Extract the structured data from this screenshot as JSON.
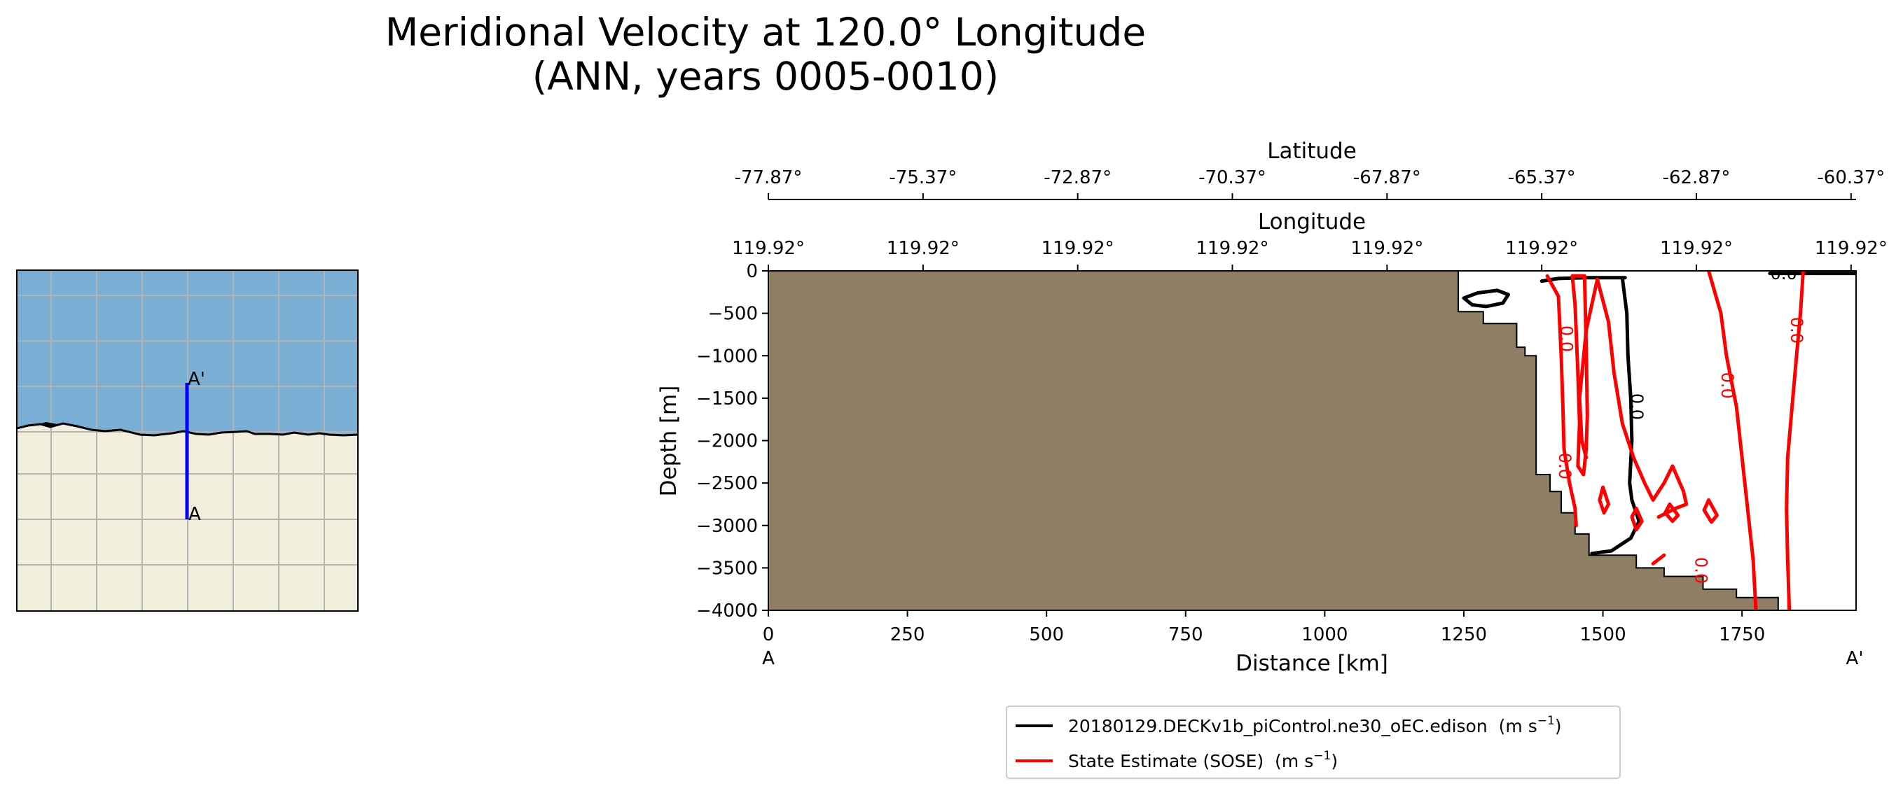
{
  "title": {
    "line1": "Meridional Velocity at 120.0° Longitude",
    "line2": "(ANN, years 0005-0010)"
  },
  "inset": {
    "label_a": "A",
    "label_a_prime": "A'",
    "colors": {
      "ocean": "#7aaed4",
      "land": "#f1eedc",
      "grid": "#b3b3b3",
      "transect": "#0000ff",
      "coast": "#000000"
    }
  },
  "chart_data": {
    "type": "contour",
    "xlabel": "Distance [km]",
    "ylabel": "Depth [m]",
    "xlim": [
      0,
      1955
    ],
    "ylim": [
      -4000,
      0
    ],
    "x_ticks": [
      0,
      250,
      500,
      750,
      1000,
      1250,
      1500,
      1750
    ],
    "y_ticks": [
      0,
      -500,
      -1000,
      -1500,
      -2000,
      -2500,
      -3000,
      -3500,
      -4000
    ],
    "x_tick_labels": [
      "0",
      "250",
      "500",
      "750",
      "1000",
      "1250",
      "1500",
      "1750"
    ],
    "y_tick_labels": [
      "0",
      "−500",
      "−1000",
      "−1500",
      "−2000",
      "−2500",
      "−3000",
      "−3500",
      "−4000"
    ],
    "x_endpoint_labels": [
      "A",
      "A'"
    ],
    "latitude_axis": {
      "label": "Latitude",
      "tick_km": [
        0,
        278,
        556,
        834,
        1112,
        1390,
        1668,
        1946
      ],
      "tick_labels": [
        "-77.87°",
        "-75.37°",
        "-72.87°",
        "-70.37°",
        "-67.87°",
        "-65.37°",
        "-62.87°",
        "-60.37°"
      ]
    },
    "longitude_axis": {
      "label": "Longitude",
      "tick_km": [
        0,
        278,
        556,
        834,
        1112,
        1390,
        1668,
        1946
      ],
      "tick_labels": [
        "119.92°",
        "119.92°",
        "119.92°",
        "119.92°",
        "119.92°",
        "119.92°",
        "119.92°",
        "119.92°"
      ]
    },
    "bathymetry": {
      "color": "#8e7f64",
      "points": [
        [
          0,
          0
        ],
        [
          1240,
          0
        ],
        [
          1240,
          -480
        ],
        [
          1285,
          -480
        ],
        [
          1285,
          -620
        ],
        [
          1345,
          -620
        ],
        [
          1345,
          -900
        ],
        [
          1360,
          -900
        ],
        [
          1360,
          -1000
        ],
        [
          1380,
          -1000
        ],
        [
          1380,
          -2400
        ],
        [
          1405,
          -2400
        ],
        [
          1405,
          -2600
        ],
        [
          1425,
          -2600
        ],
        [
          1425,
          -2850
        ],
        [
          1450,
          -2850
        ],
        [
          1450,
          -3100
        ],
        [
          1475,
          -3100
        ],
        [
          1475,
          -3350
        ],
        [
          1560,
          -3350
        ],
        [
          1560,
          -3500
        ],
        [
          1610,
          -3500
        ],
        [
          1610,
          -3600
        ],
        [
          1680,
          -3600
        ],
        [
          1680,
          -3750
        ],
        [
          1740,
          -3750
        ],
        [
          1740,
          -3850
        ],
        [
          1815,
          -3850
        ],
        [
          1815,
          -4000
        ],
        [
          0,
          -4000
        ]
      ]
    },
    "series": [
      {
        "name": "20180129.DECKv1b_piControl.ne30_oEC.edison",
        "units": "(m s",
        "units_exp": "−1",
        "units_close": ")",
        "color": "#000000",
        "contour_labels": [
          {
            "x": 1560,
            "y": -1600,
            "text": "0.0",
            "rotate": 90
          },
          {
            "x": 1825,
            "y": -40,
            "text": "0.0",
            "rotate": 0
          }
        ],
        "contours": [
          [
            [
              1250,
              -320
            ],
            [
              1275,
              -260
            ],
            [
              1310,
              -230
            ],
            [
              1330,
              -280
            ],
            [
              1320,
              -380
            ],
            [
              1290,
              -420
            ],
            [
              1265,
              -400
            ],
            [
              1250,
              -320
            ]
          ],
          [
            [
              1535,
              -90
            ],
            [
              1543,
              -500
            ],
            [
              1545,
              -1000
            ],
            [
              1550,
              -1500
            ],
            [
              1552,
              -2000
            ],
            [
              1548,
              -2500
            ],
            [
              1552,
              -2700
            ],
            [
              1565,
              -2950
            ],
            [
              1550,
              -3150
            ],
            [
              1515,
              -3300
            ],
            [
              1480,
              -3330
            ]
          ],
          [
            [
              1540,
              -80
            ],
            [
              1470,
              -80
            ],
            [
              1420,
              -90
            ],
            [
              1390,
              -120
            ]
          ],
          [
            [
              1800,
              -30
            ],
            [
              1955,
              -30
            ]
          ]
        ]
      },
      {
        "name": "State Estimate (SOSE)",
        "units": "(m s",
        "units_exp": "−1",
        "units_close": ")",
        "color": "#ff0000",
        "contour_labels": [
          {
            "x": 1433,
            "y": -800,
            "text": "0.0",
            "rotate": 90
          },
          {
            "x": 1430,
            "y": -2300,
            "text": "0.0",
            "rotate": 90
          },
          {
            "x": 1675,
            "y": -3530,
            "text": "0.0",
            "rotate": 90
          },
          {
            "x": 1722,
            "y": -1350,
            "text": "0.0",
            "rotate": 90
          },
          {
            "x": 1847,
            "y": -700,
            "text": "0.0",
            "rotate": 90
          }
        ],
        "contours": [
          [
            [
              1400,
              -60
            ],
            [
              1420,
              -300
            ],
            [
              1425,
              -1000
            ],
            [
              1428,
              -1600
            ],
            [
              1430,
              -2100
            ],
            [
              1440,
              -2500
            ],
            [
              1450,
              -2800
            ],
            [
              1452,
              -3000
            ]
          ],
          [
            [
              1445,
              -60
            ],
            [
              1450,
              -400
            ],
            [
              1455,
              -1200
            ],
            [
              1458,
              -1800
            ],
            [
              1455,
              -2300
            ],
            [
              1465,
              -2400
            ],
            [
              1470,
              -2100
            ],
            [
              1472,
              -1700
            ],
            [
              1470,
              -900
            ],
            [
              1467,
              -60
            ],
            [
              1445,
              -60
            ]
          ],
          [
            [
              1490,
              -100
            ],
            [
              1510,
              -600
            ],
            [
              1520,
              -1200
            ],
            [
              1535,
              -1800
            ],
            [
              1555,
              -2200
            ],
            [
              1575,
              -2500
            ],
            [
              1590,
              -2700
            ],
            [
              1610,
              -2500
            ],
            [
              1625,
              -2300
            ],
            [
              1645,
              -2600
            ],
            [
              1650,
              -2750
            ],
            [
              1630,
              -2800
            ],
            [
              1600,
              -2900
            ]
          ],
          [
            [
              1490,
              -100
            ],
            [
              1470,
              -700
            ],
            [
              1458,
              -1500
            ],
            [
              1462,
              -2000
            ],
            [
              1470,
              -2200
            ]
          ],
          [
            [
              1500,
              -2550
            ],
            [
              1510,
              -2750
            ],
            [
              1502,
              -2850
            ],
            [
              1494,
              -2700
            ],
            [
              1500,
              -2550
            ]
          ],
          [
            [
              1560,
              -2800
            ],
            [
              1570,
              -2950
            ],
            [
              1560,
              -3050
            ],
            [
              1552,
              -2900
            ],
            [
              1560,
              -2800
            ]
          ],
          [
            [
              1620,
              -2750
            ],
            [
              1635,
              -2880
            ],
            [
              1625,
              -2950
            ],
            [
              1612,
              -2850
            ],
            [
              1620,
              -2750
            ]
          ],
          [
            [
              1690,
              -2700
            ],
            [
              1705,
              -2880
            ],
            [
              1695,
              -2960
            ],
            [
              1682,
              -2820
            ],
            [
              1690,
              -2700
            ]
          ],
          [
            [
              1690,
              0
            ],
            [
              1712,
              -500
            ],
            [
              1722,
              -1000
            ],
            [
              1740,
              -1600
            ],
            [
              1750,
              -2200
            ],
            [
              1760,
              -2800
            ],
            [
              1770,
              -3400
            ],
            [
              1775,
              -4000
            ]
          ],
          [
            [
              1860,
              0
            ],
            [
              1855,
              -500
            ],
            [
              1848,
              -1000
            ],
            [
              1840,
              -1600
            ],
            [
              1832,
              -2200
            ],
            [
              1830,
              -2800
            ],
            [
              1832,
              -3400
            ],
            [
              1835,
              -4000
            ]
          ],
          [
            [
              1590,
              -3450
            ],
            [
              1610,
              -3350
            ]
          ]
        ]
      }
    ]
  }
}
